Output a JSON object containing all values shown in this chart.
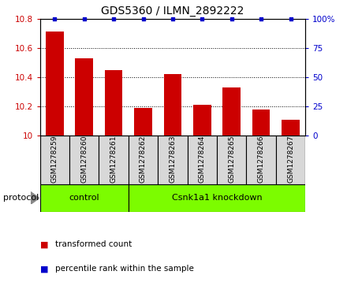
{
  "title": "GDS5360 / ILMN_2892222",
  "samples": [
    "GSM1278259",
    "GSM1278260",
    "GSM1278261",
    "GSM1278262",
    "GSM1278263",
    "GSM1278264",
    "GSM1278265",
    "GSM1278266",
    "GSM1278267"
  ],
  "bar_values": [
    10.71,
    10.53,
    10.45,
    10.19,
    10.42,
    10.21,
    10.33,
    10.18,
    10.11
  ],
  "percentile_values": [
    100,
    100,
    100,
    100,
    100,
    100,
    100,
    100,
    100
  ],
  "ylim_left": [
    10,
    10.8
  ],
  "ylim_right": [
    0,
    100
  ],
  "yticks_left": [
    10,
    10.2,
    10.4,
    10.6,
    10.8
  ],
  "yticks_right": [
    0,
    25,
    50,
    75,
    100
  ],
  "bar_color": "#CC0000",
  "dot_color": "#0000CC",
  "bar_width": 0.6,
  "group1_label": "control",
  "group2_label": "Csnk1a1 knockdown",
  "group1_count": 3,
  "group2_count": 6,
  "protocol_label": "protocol",
  "legend1": "transformed count",
  "legend2": "percentile rank within the sample",
  "sample_bg": "#D8D8D8",
  "group_bg": "#7CFC00",
  "title_fontsize": 10,
  "tick_fontsize": 7.5,
  "sample_fontsize": 6.5,
  "proto_fontsize": 8,
  "legend_fontsize": 7.5
}
